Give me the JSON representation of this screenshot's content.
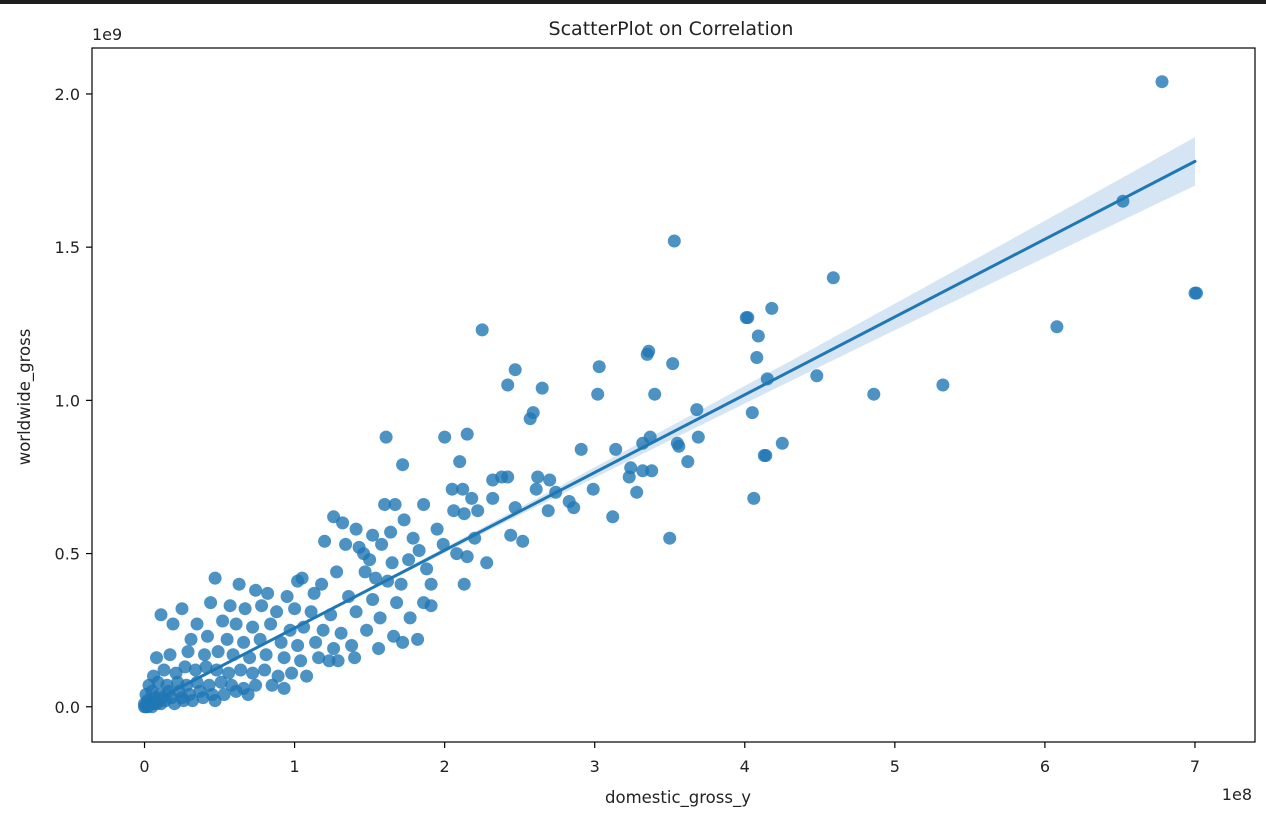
{
  "chart_data": {
    "type": "scatter",
    "title": "ScatterPlot on Correlation",
    "xlabel": "domestic_gross_y",
    "ylabel": "worldwide_gross",
    "x_offset_text": "1e8",
    "y_offset_text": "1e9",
    "x_scale": 100000000,
    "y_scale": 1000000000,
    "xlim": [
      -0.35,
      7.4
    ],
    "ylim": [
      -0.115,
      2.15
    ],
    "xticks": [
      0,
      1,
      2,
      3,
      4,
      5,
      6,
      7
    ],
    "xtick_labels": [
      "0",
      "1",
      "2",
      "3",
      "4",
      "5",
      "6",
      "7"
    ],
    "yticks": [
      0.0,
      0.5,
      1.0,
      1.5,
      2.0
    ],
    "ytick_labels": [
      "0.0",
      "0.5",
      "1.0",
      "1.5",
      "2.0"
    ],
    "grid": false,
    "colors": {
      "points": "#1f77b4",
      "line": "#1f77b4",
      "band": "#cfe0f1"
    },
    "regression": {
      "x": [
        0,
        7.0
      ],
      "y": [
        0.003,
        1.78
      ],
      "ci_halfwidth_end": 0.075
    },
    "series": [
      {
        "values": [
          [
            6.78,
            2.04
          ],
          [
            6.52,
            1.65
          ],
          [
            3.53,
            1.52
          ],
          [
            4.59,
            1.4
          ],
          [
            4.18,
            1.3
          ],
          [
            4.01,
            1.27
          ],
          [
            4.02,
            1.27
          ],
          [
            7.0,
            1.35
          ],
          [
            7.01,
            1.35
          ],
          [
            6.08,
            1.24
          ],
          [
            4.09,
            1.21
          ],
          [
            2.25,
            1.23
          ],
          [
            3.36,
            1.16
          ],
          [
            3.35,
            1.15
          ],
          [
            4.08,
            1.14
          ],
          [
            3.03,
            1.11
          ],
          [
            2.47,
            1.1
          ],
          [
            3.52,
            1.12
          ],
          [
            4.48,
            1.08
          ],
          [
            4.15,
            1.07
          ],
          [
            2.42,
            1.05
          ],
          [
            2.65,
            1.04
          ],
          [
            5.32,
            1.05
          ],
          [
            4.86,
            1.02
          ],
          [
            3.02,
            1.02
          ],
          [
            3.4,
            1.02
          ],
          [
            2.59,
            0.96
          ],
          [
            2.57,
            0.94
          ],
          [
            3.68,
            0.97
          ],
          [
            4.05,
            0.96
          ],
          [
            1.61,
            0.88
          ],
          [
            2.0,
            0.88
          ],
          [
            2.15,
            0.89
          ],
          [
            3.37,
            0.88
          ],
          [
            3.32,
            0.86
          ],
          [
            3.69,
            0.88
          ],
          [
            4.25,
            0.86
          ],
          [
            1.72,
            0.79
          ],
          [
            2.1,
            0.8
          ],
          [
            2.91,
            0.84
          ],
          [
            3.14,
            0.84
          ],
          [
            3.55,
            0.86
          ],
          [
            3.56,
            0.85
          ],
          [
            4.14,
            0.82
          ],
          [
            4.13,
            0.82
          ],
          [
            3.62,
            0.8
          ],
          [
            3.24,
            0.78
          ],
          [
            3.32,
            0.77
          ],
          [
            3.38,
            0.77
          ],
          [
            2.38,
            0.75
          ],
          [
            2.42,
            0.75
          ],
          [
            2.62,
            0.75
          ],
          [
            2.7,
            0.74
          ],
          [
            2.32,
            0.74
          ],
          [
            3.23,
            0.75
          ],
          [
            2.05,
            0.71
          ],
          [
            2.12,
            0.71
          ],
          [
            2.61,
            0.71
          ],
          [
            2.74,
            0.7
          ],
          [
            2.99,
            0.71
          ],
          [
            3.28,
            0.7
          ],
          [
            2.18,
            0.68
          ],
          [
            2.32,
            0.68
          ],
          [
            2.47,
            0.65
          ],
          [
            2.69,
            0.64
          ],
          [
            2.83,
            0.67
          ],
          [
            2.86,
            0.65
          ],
          [
            1.6,
            0.66
          ],
          [
            1.67,
            0.66
          ],
          [
            1.86,
            0.66
          ],
          [
            2.06,
            0.64
          ],
          [
            2.13,
            0.63
          ],
          [
            2.22,
            0.64
          ],
          [
            4.06,
            0.68
          ],
          [
            1.26,
            0.62
          ],
          [
            1.32,
            0.6
          ],
          [
            1.41,
            0.58
          ],
          [
            1.73,
            0.61
          ],
          [
            1.52,
            0.56
          ],
          [
            1.64,
            0.57
          ],
          [
            1.79,
            0.55
          ],
          [
            1.95,
            0.58
          ],
          [
            2.2,
            0.55
          ],
          [
            2.44,
            0.56
          ],
          [
            2.52,
            0.54
          ],
          [
            3.12,
            0.62
          ],
          [
            3.5,
            0.55
          ],
          [
            1.2,
            0.54
          ],
          [
            1.34,
            0.53
          ],
          [
            1.43,
            0.52
          ],
          [
            1.58,
            0.53
          ],
          [
            1.83,
            0.51
          ],
          [
            1.99,
            0.53
          ],
          [
            2.08,
            0.5
          ],
          [
            1.46,
            0.5
          ],
          [
            1.5,
            0.48
          ],
          [
            1.65,
            0.47
          ],
          [
            1.76,
            0.48
          ],
          [
            1.88,
            0.45
          ],
          [
            2.28,
            0.47
          ],
          [
            2.15,
            0.49
          ],
          [
            0.47,
            0.42
          ],
          [
            0.63,
            0.4
          ],
          [
            1.02,
            0.41
          ],
          [
            1.05,
            0.42
          ],
          [
            1.18,
            0.4
          ],
          [
            1.28,
            0.44
          ],
          [
            1.47,
            0.44
          ],
          [
            1.54,
            0.42
          ],
          [
            1.62,
            0.41
          ],
          [
            1.71,
            0.4
          ],
          [
            1.91,
            0.4
          ],
          [
            2.13,
            0.4
          ],
          [
            0.74,
            0.38
          ],
          [
            0.82,
            0.37
          ],
          [
            0.95,
            0.36
          ],
          [
            1.13,
            0.37
          ],
          [
            1.36,
            0.36
          ],
          [
            1.52,
            0.35
          ],
          [
            1.68,
            0.34
          ],
          [
            1.86,
            0.34
          ],
          [
            1.91,
            0.33
          ],
          [
            0.44,
            0.34
          ],
          [
            0.57,
            0.33
          ],
          [
            0.67,
            0.32
          ],
          [
            0.78,
            0.33
          ],
          [
            0.88,
            0.31
          ],
          [
            1.0,
            0.32
          ],
          [
            1.11,
            0.31
          ],
          [
            1.24,
            0.3
          ],
          [
            1.41,
            0.31
          ],
          [
            1.57,
            0.29
          ],
          [
            1.77,
            0.29
          ],
          [
            0.25,
            0.32
          ],
          [
            0.11,
            0.3
          ],
          [
            0.35,
            0.27
          ],
          [
            0.19,
            0.27
          ],
          [
            0.52,
            0.28
          ],
          [
            0.61,
            0.27
          ],
          [
            0.72,
            0.26
          ],
          [
            0.84,
            0.27
          ],
          [
            0.97,
            0.25
          ],
          [
            1.06,
            0.26
          ],
          [
            1.19,
            0.25
          ],
          [
            1.31,
            0.24
          ],
          [
            1.48,
            0.25
          ],
          [
            1.66,
            0.23
          ],
          [
            1.82,
            0.22
          ],
          [
            0.31,
            0.22
          ],
          [
            0.42,
            0.23
          ],
          [
            0.55,
            0.22
          ],
          [
            0.66,
            0.21
          ],
          [
            0.77,
            0.22
          ],
          [
            0.91,
            0.21
          ],
          [
            1.02,
            0.2
          ],
          [
            1.14,
            0.21
          ],
          [
            1.26,
            0.19
          ],
          [
            1.38,
            0.2
          ],
          [
            1.56,
            0.19
          ],
          [
            1.72,
            0.21
          ],
          [
            0.08,
            0.16
          ],
          [
            0.17,
            0.17
          ],
          [
            0.29,
            0.18
          ],
          [
            0.4,
            0.17
          ],
          [
            0.49,
            0.18
          ],
          [
            0.59,
            0.17
          ],
          [
            0.7,
            0.16
          ],
          [
            0.81,
            0.17
          ],
          [
            0.93,
            0.16
          ],
          [
            1.04,
            0.15
          ],
          [
            1.16,
            0.16
          ],
          [
            1.29,
            0.15
          ],
          [
            1.4,
            0.16
          ],
          [
            1.23,
            0.15
          ],
          [
            0.06,
            0.1
          ],
          [
            0.13,
            0.12
          ],
          [
            0.21,
            0.11
          ],
          [
            0.27,
            0.13
          ],
          [
            0.34,
            0.12
          ],
          [
            0.41,
            0.13
          ],
          [
            0.48,
            0.12
          ],
          [
            0.56,
            0.11
          ],
          [
            0.64,
            0.12
          ],
          [
            0.72,
            0.11
          ],
          [
            0.8,
            0.12
          ],
          [
            0.89,
            0.1
          ],
          [
            0.98,
            0.11
          ],
          [
            1.08,
            0.1
          ],
          [
            0.03,
            0.07
          ],
          [
            0.09,
            0.08
          ],
          [
            0.15,
            0.07
          ],
          [
            0.22,
            0.08
          ],
          [
            0.28,
            0.07
          ],
          [
            0.35,
            0.08
          ],
          [
            0.43,
            0.07
          ],
          [
            0.51,
            0.08
          ],
          [
            0.58,
            0.07
          ],
          [
            0.66,
            0.06
          ],
          [
            0.74,
            0.07
          ],
          [
            0.85,
            0.07
          ],
          [
            0.93,
            0.06
          ],
          [
            0.01,
            0.04
          ],
          [
            0.05,
            0.05
          ],
          [
            0.1,
            0.04
          ],
          [
            0.16,
            0.05
          ],
          [
            0.23,
            0.05
          ],
          [
            0.3,
            0.04
          ],
          [
            0.37,
            0.05
          ],
          [
            0.45,
            0.04
          ],
          [
            0.53,
            0.04
          ],
          [
            0.61,
            0.05
          ],
          [
            0.69,
            0.04
          ],
          [
            0.0,
            0.01
          ],
          [
            0.02,
            0.02
          ],
          [
            0.04,
            0.02
          ],
          [
            0.07,
            0.03
          ],
          [
            0.12,
            0.03
          ],
          [
            0.18,
            0.03
          ],
          [
            0.25,
            0.03
          ],
          [
            0.32,
            0.02
          ],
          [
            0.39,
            0.03
          ],
          [
            0.47,
            0.02
          ],
          [
            0.0,
            0.0
          ],
          [
            0.01,
            0.0
          ],
          [
            0.03,
            0.01
          ],
          [
            0.06,
            0.01
          ],
          [
            0.09,
            0.02
          ],
          [
            0.14,
            0.02
          ],
          [
            0.2,
            0.01
          ],
          [
            0.26,
            0.02
          ],
          [
            0.02,
            0.0
          ],
          [
            0.05,
            0.0
          ],
          [
            0.08,
            0.01
          ],
          [
            0.11,
            0.01
          ]
        ]
      }
    ]
  }
}
